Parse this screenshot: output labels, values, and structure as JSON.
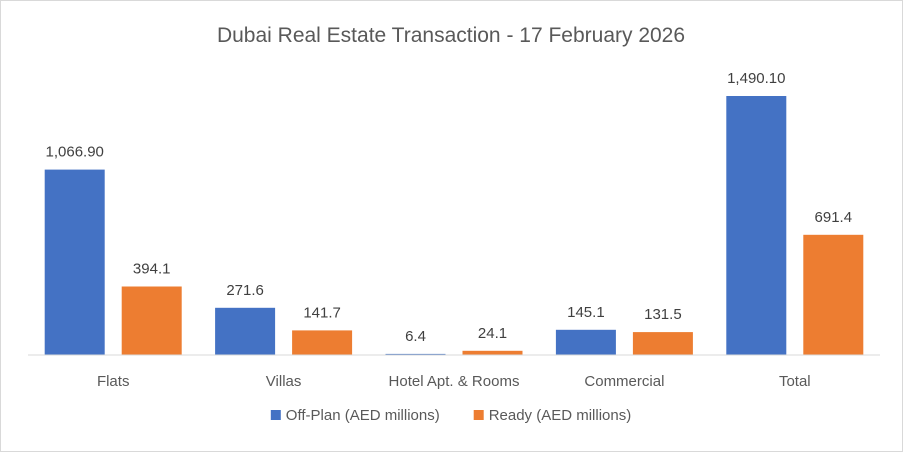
{
  "chart_data": {
    "type": "bar",
    "title": "Dubai Real Estate Transaction - 17 February 2026",
    "xlabel": "",
    "ylabel": "",
    "categories": [
      "Flats",
      "Villas",
      "Hotel Apt. & Rooms",
      "Commercial",
      "Total"
    ],
    "series": [
      {
        "name": "Off-Plan (AED millions)",
        "color": "#4472c4",
        "values": [
          1066.9,
          271.6,
          6.4,
          145.1,
          1490.1
        ],
        "labels": [
          "1,066.90",
          "271.6",
          "6.4",
          "145.1",
          "1,490.10"
        ]
      },
      {
        "name": "Ready (AED millions)",
        "color": "#ed7d31",
        "values": [
          394.1,
          141.7,
          24.1,
          131.5,
          691.4
        ],
        "labels": [
          "394.1",
          "141.7",
          "24.1",
          "131.5",
          "691.4"
        ]
      }
    ],
    "ylim": [
      0,
      1490.1
    ],
    "grid": false,
    "legend_position": "bottom",
    "data_labels": true
  }
}
